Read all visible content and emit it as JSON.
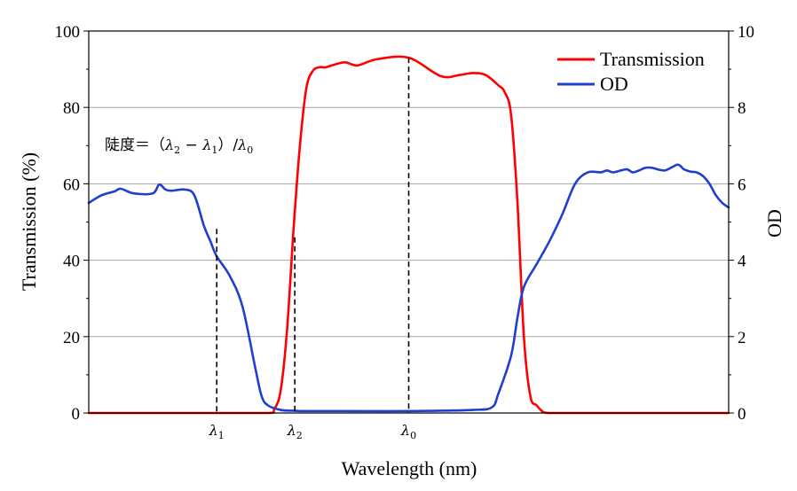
{
  "chart_data": {
    "type": "line",
    "xlabel": "Wavelength (nm)",
    "ylabel": "Transmission (%)",
    "y2label": "OD",
    "ylim": [
      0,
      100
    ],
    "y2lim": [
      0,
      10
    ],
    "yticks": [
      "0",
      "20",
      "40",
      "60",
      "80",
      "100"
    ],
    "y2ticks": [
      "0",
      "2",
      "4",
      "6",
      "8",
      "10"
    ],
    "grid": true,
    "legend_position": "top-right",
    "series": [
      {
        "name": "Transmission",
        "color": "#ff0000",
        "axis": "left",
        "x": [
          0,
          0.1,
          0.2,
          0.28,
          0.29,
          0.3,
          0.31,
          0.32,
          0.33,
          0.34,
          0.35,
          0.36,
          0.37,
          0.38,
          0.4,
          0.42,
          0.45,
          0.5,
          0.55,
          0.58,
          0.6,
          0.62,
          0.64,
          0.65,
          0.66,
          0.67,
          0.68,
          0.69,
          0.7,
          0.71,
          0.72,
          0.73,
          0.8,
          0.9,
          1.0
        ],
        "values": [
          0,
          0,
          0,
          0,
          1,
          6,
          22,
          48,
          70,
          85,
          89.5,
          90.5,
          90.5,
          91,
          91.8,
          91,
          92.6,
          93,
          88.2,
          88.5,
          89,
          88.5,
          85.8,
          84,
          78,
          55,
          20,
          4.5,
          2,
          0.3,
          0,
          0,
          0,
          0,
          0
        ]
      },
      {
        "name": "OD",
        "color": "#1f3fd0",
        "axis": "right",
        "x": [
          0,
          0.02,
          0.04,
          0.05,
          0.07,
          0.1,
          0.11,
          0.12,
          0.13,
          0.15,
          0.165,
          0.18,
          0.19,
          0.2,
          0.22,
          0.24,
          0.26,
          0.27,
          0.28,
          0.3,
          0.32,
          0.34,
          0.4,
          0.5,
          0.6,
          0.63,
          0.64,
          0.66,
          0.67,
          0.68,
          0.7,
          0.72,
          0.74,
          0.76,
          0.78,
          0.8,
          0.81,
          0.82,
          0.84,
          0.85,
          0.86,
          0.87,
          0.88,
          0.9,
          0.92,
          0.93,
          0.94,
          0.95,
          0.96,
          0.97,
          0.98,
          0.99,
          1.0
        ],
        "values": [
          5.5,
          5.7,
          5.8,
          5.87,
          5.75,
          5.75,
          5.98,
          5.85,
          5.82,
          5.85,
          5.7,
          4.9,
          4.5,
          4.1,
          3.6,
          2.8,
          1.2,
          0.45,
          0.2,
          0.08,
          0.06,
          0.05,
          0.05,
          0.05,
          0.08,
          0.15,
          0.5,
          1.5,
          2.5,
          3.3,
          3.9,
          4.5,
          5.2,
          6.0,
          6.3,
          6.3,
          6.35,
          6.3,
          6.38,
          6.3,
          6.35,
          6.42,
          6.42,
          6.35,
          6.5,
          6.38,
          6.32,
          6.3,
          6.2,
          6.0,
          5.7,
          5.5,
          5.38
        ]
      }
    ],
    "annotations": {
      "lambda1": {
        "x": 0.2,
        "top_od": 4.82,
        "label": "λ",
        "sub": "1"
      },
      "lambda2": {
        "x": 0.322,
        "top_pct": 46,
        "label": "λ",
        "sub": "2"
      },
      "lambda0": {
        "x": 0.5,
        "top_pct": 93,
        "label": "λ",
        "sub": "0"
      },
      "formula": {
        "prefix": "陡度＝（",
        "l2": "λ",
        "sub2": "2",
        "minus": " − ",
        "l1": "λ",
        "sub1": "1",
        "close": "）/",
        "l0": "λ",
        "sub0": "0"
      }
    }
  }
}
